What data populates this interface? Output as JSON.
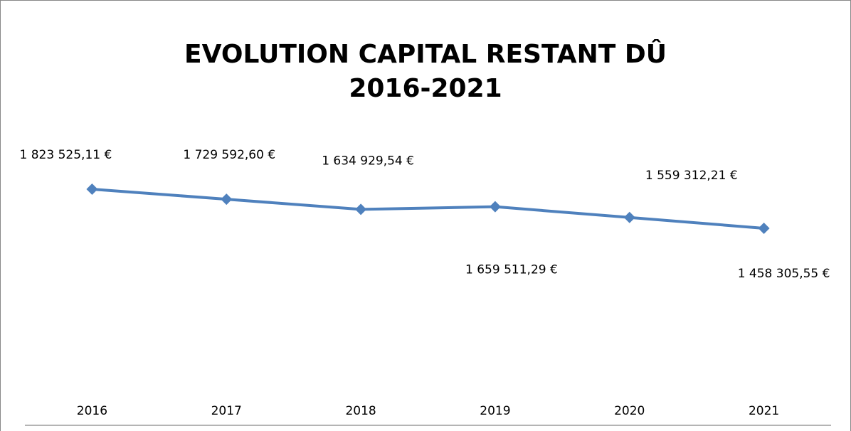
{
  "chart_data": {
    "type": "line",
    "title": "EVOLUTION CAPITAL RESTANT DÛ",
    "subtitle": "2016-2021",
    "categories": [
      "2016",
      "2017",
      "2018",
      "2019",
      "2020",
      "2021"
    ],
    "series": [
      {
        "name": "Capital restant dû",
        "color": "#4f81bd",
        "values": [
          1823525.11,
          1729592.6,
          1634929.54,
          1659511.29,
          1559312.21,
          1458305.55
        ],
        "value_labels": [
          "1 823 525,11 €",
          "1 729 592,60 €",
          "1 634 929,54 €",
          "1 659 511,29 €",
          "1 559 312,21 €",
          "1 458 305,55 €"
        ]
      }
    ],
    "ylim": [
      0,
      2000000
    ]
  }
}
